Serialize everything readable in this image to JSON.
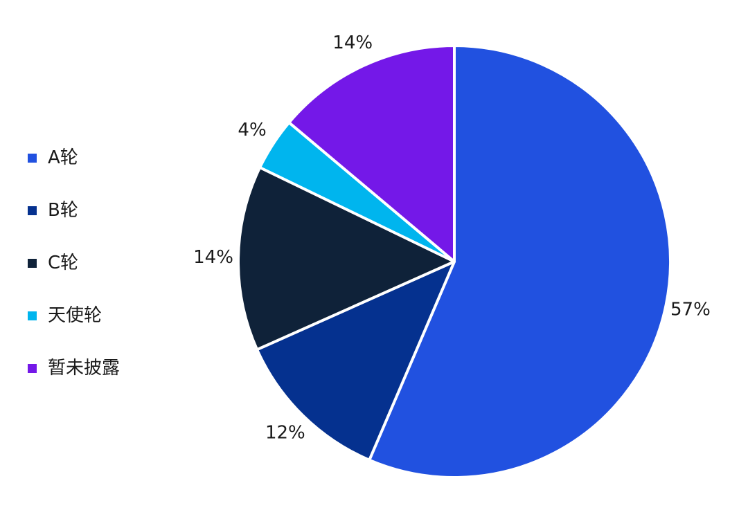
{
  "chart_data": {
    "type": "pie",
    "legend_position": "left",
    "slices": [
      {
        "label": "A轮",
        "value": 57,
        "display": "57%",
        "color": "#2151e0"
      },
      {
        "label": "B轮",
        "value": 12,
        "display": "12%",
        "color": "#05318f"
      },
      {
        "label": "C轮",
        "value": 14,
        "display": "14%",
        "color": "#0f2239"
      },
      {
        "label": "天使轮",
        "value": 4,
        "display": "4%",
        "color": "#00b5ee"
      },
      {
        "label": "暂未披露",
        "value": 14,
        "display": "14%",
        "color": "#7418e8"
      }
    ]
  }
}
